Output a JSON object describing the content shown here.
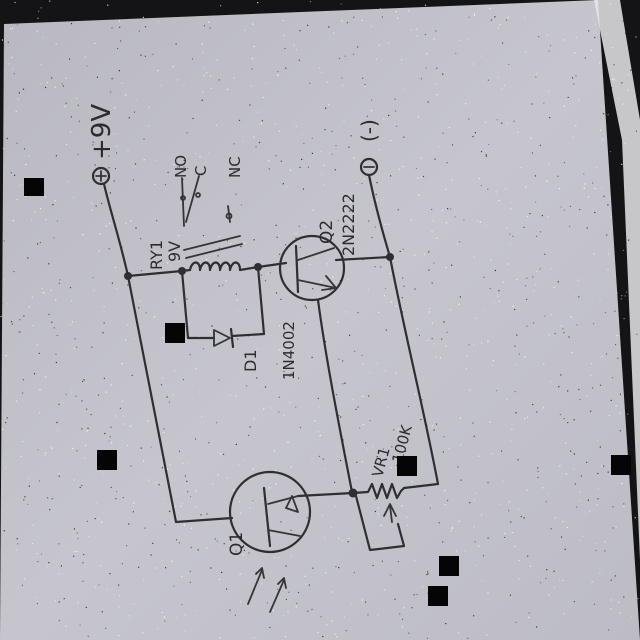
{
  "diagram": {
    "supply_positive": "+9V",
    "supply_negative": "(-)",
    "relay": {
      "label_line1": "RY1",
      "label_line2": "9V",
      "contact_labels": [
        "NO",
        "C",
        "NC"
      ]
    },
    "transistor_q2": {
      "label": "Q2",
      "part": "2N2222"
    },
    "diode": {
      "label": "D1",
      "part": "1N4002"
    },
    "potentiometer": {
      "label": "VR1",
      "value": "100K"
    },
    "phototransistor": {
      "label": "Q1"
    }
  },
  "colors": {
    "paper": "#c2c1c9",
    "ink": "#2e2e33",
    "background": "#141416"
  }
}
